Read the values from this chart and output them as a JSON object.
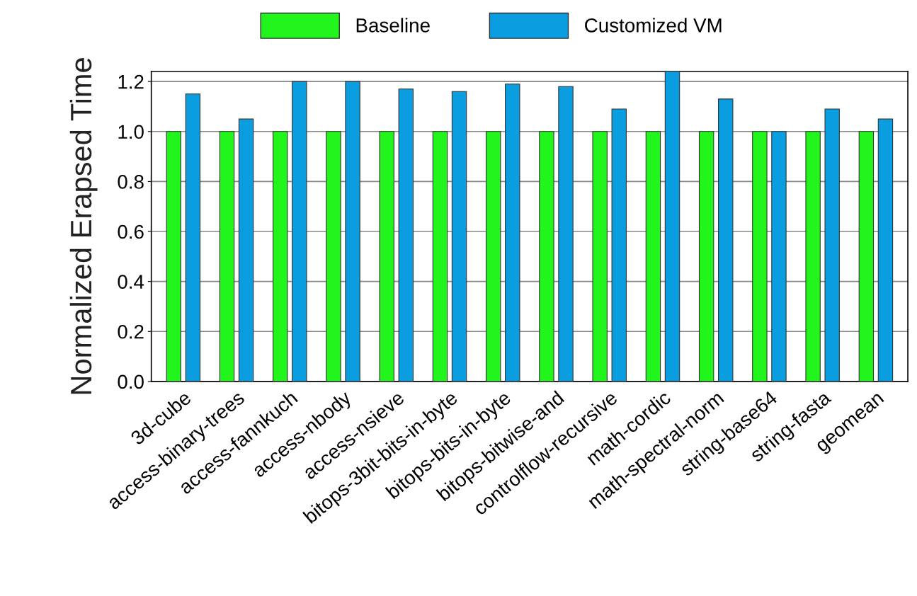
{
  "chart_data": {
    "type": "bar",
    "ylabel": "Normalized Erapsed Time",
    "categories": [
      "3d-cube",
      "access-binary-trees",
      "access-fannkuch",
      "access-nbody",
      "access-nsieve",
      "bitops-3bit-bits-in-byte",
      "bitops-bits-in-byte",
      "bitops-bitwise-and",
      "controlflow-recursive",
      "math-cordic",
      "math-spectral-norm",
      "string-base64",
      "string-fasta",
      "geomean"
    ],
    "series": [
      {
        "name": "Baseline",
        "color": "#22f51b",
        "values": [
          1.0,
          1.0,
          1.0,
          1.0,
          1.0,
          1.0,
          1.0,
          1.0,
          1.0,
          1.0,
          1.0,
          1.0,
          1.0,
          1.0
        ]
      },
      {
        "name": "Customized VM",
        "color": "#0a9ee0",
        "values": [
          1.15,
          1.05,
          1.2,
          1.2,
          1.17,
          1.16,
          1.19,
          1.18,
          1.09,
          1.24,
          1.13,
          1.0,
          1.09,
          1.05
        ]
      }
    ],
    "ylim": [
      0,
      1.24
    ],
    "yticks": [
      {
        "value": 0,
        "label": "0.0"
      },
      {
        "value": 0.2,
        "label": "0.2"
      },
      {
        "value": 0.4,
        "label": "0.4"
      },
      {
        "value": 0.6,
        "label": "0.6"
      },
      {
        "value": 0.8,
        "label": "0.8"
      },
      {
        "value": 1.0,
        "label": "1.0"
      },
      {
        "value": 1.2,
        "label": "1.2"
      }
    ],
    "grid": "y",
    "legend": "top"
  }
}
